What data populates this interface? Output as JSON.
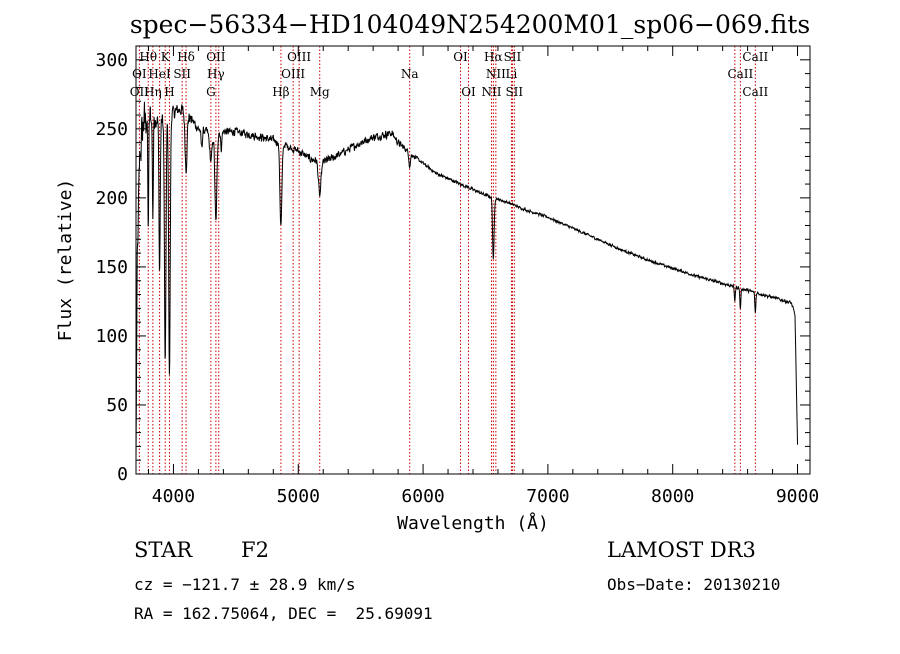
{
  "chart_data": {
    "type": "line",
    "title": "spec−56334−HD104049N254200M01_sp06−069.fits",
    "xlabel": "Wavelength (Å)",
    "ylabel": "Flux (relative)",
    "xlim": [
      3700,
      9100
    ],
    "ylim": [
      0,
      310
    ],
    "x_ticks": [
      4000,
      5000,
      6000,
      7000,
      8000,
      9000
    ],
    "x_tick_labels": [
      "4000",
      "5000",
      "6000",
      "7000",
      "8000",
      "9000"
    ],
    "y_ticks": [
      0,
      50,
      100,
      150,
      200,
      250,
      300
    ],
    "y_tick_labels": [
      "0",
      "50",
      "100",
      "150",
      "200",
      "250",
      "300"
    ],
    "line_color": "#000000",
    "marker_color": "#cc0000",
    "continuum": {
      "x": [
        3700,
        3710,
        3730,
        3760,
        3800,
        3850,
        3900,
        3950,
        4000,
        4050,
        4100,
        4200,
        4300,
        4400,
        4500,
        4600,
        4700,
        4800,
        4900,
        5000,
        5100,
        5200,
        5300,
        5400,
        5500,
        5600,
        5700,
        5750,
        5800,
        5900,
        6000,
        6100,
        6200,
        6300,
        6400,
        6500,
        6600,
        6700,
        6800,
        6900,
        7000,
        7200,
        7400,
        7600,
        7800,
        8000,
        8200,
        8400,
        8600,
        8800,
        8950,
        8980,
        9000
      ],
      "y": [
        10,
        150,
        230,
        255,
        260,
        258,
        256,
        258,
        262,
        264,
        262,
        250,
        247,
        248,
        248,
        246,
        244,
        242,
        238,
        234,
        228,
        226,
        230,
        235,
        240,
        244,
        246,
        247,
        240,
        232,
        225,
        218,
        214,
        210,
        206,
        202,
        199,
        196,
        192,
        189,
        186,
        178,
        170,
        162,
        155,
        149,
        143,
        138,
        133,
        128,
        124,
        115,
        20
      ],
      "noise": [
        3,
        20,
        22,
        18,
        14,
        10,
        8,
        7,
        6,
        6,
        6,
        4,
        4,
        3.5,
        3.5,
        3.5,
        3.5,
        3.5,
        3.5,
        3.5,
        3.5,
        3.5,
        3.5,
        3.5,
        3.5,
        3.5,
        3.5,
        3.5,
        3,
        2,
        1.5,
        1.5,
        1.5,
        1.5,
        1.5,
        1.5,
        1.2,
        1.2,
        1.2,
        1.2,
        1.2,
        1.2,
        1.2,
        1.2,
        1.2,
        1.2,
        1.2,
        1.5,
        1.5,
        1.5,
        1.5,
        2,
        2
      ]
    },
    "absorption_lines": [
      {
        "center": 3798,
        "depth": 80,
        "width": 4
      },
      {
        "center": 3835,
        "depth": 70,
        "width": 4
      },
      {
        "center": 3889,
        "depth": 110,
        "width": 5
      },
      {
        "center": 3934,
        "depth": 180,
        "width": 6
      },
      {
        "center": 3968,
        "depth": 190,
        "width": 6
      },
      {
        "center": 4101,
        "depth": 40,
        "width": 8
      },
      {
        "center": 4226,
        "depth": 12,
        "width": 6
      },
      {
        "center": 4300,
        "depth": 20,
        "width": 10
      },
      {
        "center": 4340,
        "depth": 65,
        "width": 8
      },
      {
        "center": 4383,
        "depth": 12,
        "width": 5
      },
      {
        "center": 4861,
        "depth": 60,
        "width": 8
      },
      {
        "center": 5172,
        "depth": 25,
        "width": 10
      },
      {
        "center": 5893,
        "depth": 10,
        "width": 6
      },
      {
        "center": 6563,
        "depth": 45,
        "width": 6
      },
      {
        "center": 8498,
        "depth": 10,
        "width": 4
      },
      {
        "center": 8542,
        "depth": 15,
        "width": 4
      },
      {
        "center": 8662,
        "depth": 15,
        "width": 4
      }
    ],
    "annotations": [
      {
        "label": "Hθ",
        "x": 3798,
        "row": 0
      },
      {
        "label": "K",
        "x": 3934,
        "row": 0
      },
      {
        "label": "Hδ",
        "x": 4101,
        "row": 0
      },
      {
        "label": "OII",
        "x": 4340,
        "row": 0
      },
      {
        "label": "OIII",
        "x": 5007,
        "row": 0
      },
      {
        "label": "OI",
        "x": 6300,
        "row": 0
      },
      {
        "label": "Hα",
        "x": 6563,
        "row": 0
      },
      {
        "label": "SII",
        "x": 6716,
        "row": 0
      },
      {
        "label": "CaII",
        "x": 8662,
        "row": 0
      },
      {
        "label": "OI",
        "x": 3727,
        "row": 1
      },
      {
        "label": "HeI",
        "x": 3889,
        "row": 1
      },
      {
        "label": "SII",
        "x": 4070,
        "row": 1
      },
      {
        "label": "Hγ",
        "x": 4340,
        "row": 1
      },
      {
        "label": "OIII",
        "x": 4959,
        "row": 1
      },
      {
        "label": "Na",
        "x": 5893,
        "row": 1
      },
      {
        "label": "NII",
        "x": 6583,
        "row": 1
      },
      {
        "label": "Li",
        "x": 6708,
        "row": 1
      },
      {
        "label": "CaII",
        "x": 8542,
        "row": 1
      },
      {
        "label": "OII",
        "x": 3727,
        "row": 2
      },
      {
        "label": "Hη",
        "x": 3835,
        "row": 2
      },
      {
        "label": "H",
        "x": 3968,
        "row": 2
      },
      {
        "label": "G",
        "x": 4300,
        "row": 2
      },
      {
        "label": "Hβ",
        "x": 4861,
        "row": 2
      },
      {
        "label": "Mg",
        "x": 5172,
        "row": 2
      },
      {
        "label": "OI",
        "x": 6364,
        "row": 2
      },
      {
        "label": "NII",
        "x": 6548,
        "row": 2
      },
      {
        "label": "SII",
        "x": 6731,
        "row": 2
      },
      {
        "label": "CaII",
        "x": 8662,
        "row": 2
      }
    ],
    "line_markers": [
      3727,
      3798,
      3835,
      3889,
      3934,
      3968,
      4070,
      4101,
      4300,
      4340,
      4363,
      4861,
      4959,
      5007,
      5172,
      5893,
      6300,
      6364,
      6548,
      6563,
      6583,
      6708,
      6716,
      6731,
      8498,
      8542,
      8662
    ]
  },
  "info": {
    "object_class": "STAR",
    "subclass": "F2",
    "survey": "LAMOST DR3",
    "cz": "cz = −121.7 ± 28.9 km/s",
    "obs_date": "Obs−Date: 20130210",
    "coords": "RA = 162.75064, DEC =  25.69091"
  }
}
